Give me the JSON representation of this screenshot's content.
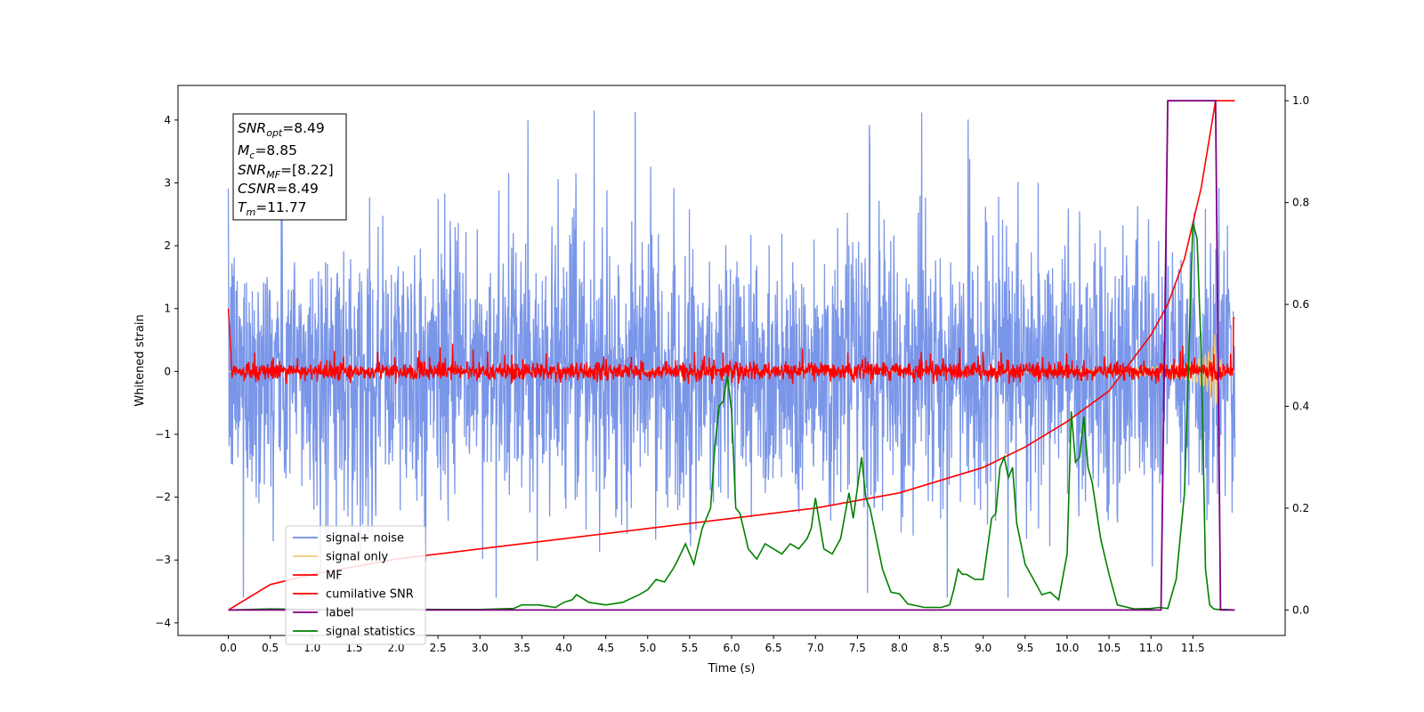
{
  "chart_data": {
    "type": "line",
    "xlabel": "Time (s)",
    "ylabel": "Whitened strain",
    "xlim": [
      -0.6,
      12.6
    ],
    "ylim": [
      -4.2,
      4.55
    ],
    "y2lim": [
      -0.05,
      1.03
    ],
    "x_ticks": [
      "0.0",
      "0.5",
      "1.0",
      "1.5",
      "2.0",
      "2.5",
      "3.0",
      "3.5",
      "4.0",
      "4.5",
      "5.0",
      "5.5",
      "6.0",
      "6.5",
      "7.0",
      "7.5",
      "8.0",
      "8.5",
      "9.0",
      "9.5",
      "10.0",
      "10.5",
      "11.0",
      "11.5"
    ],
    "x_tick_values": [
      0,
      0.5,
      1,
      1.5,
      2,
      2.5,
      3,
      3.5,
      4,
      4.5,
      5,
      5.5,
      6,
      6.5,
      7,
      7.5,
      8,
      8.5,
      9,
      9.5,
      10,
      10.5,
      11,
      11.5
    ],
    "y_ticks": [
      "−4",
      "−3",
      "−2",
      "−1",
      "0",
      "1",
      "2",
      "3",
      "4"
    ],
    "y_tick_values": [
      -4,
      -3,
      -2,
      -1,
      0,
      1,
      2,
      3,
      4
    ],
    "y2_ticks": [
      "0.0",
      "0.2",
      "0.4",
      "0.6",
      "0.8",
      "1.0"
    ],
    "y2_tick_values": [
      0,
      0.2,
      0.4,
      0.6,
      0.8,
      1.0
    ],
    "grid": false,
    "legend_position": "lower-left",
    "series": [
      {
        "name": "signal+ noise",
        "axis": "left",
        "color": "#6b8be6",
        "description": "noise band",
        "x_range": [
          0,
          12.0
        ],
        "envelope": [
          -3.6,
          4.15
        ]
      },
      {
        "name": "signal only",
        "axis": "left",
        "color": "#f5c97a",
        "description": "chirp",
        "x_range": [
          0,
          12.0
        ],
        "amplitude_at_end": 0.8
      },
      {
        "name": "MF",
        "axis": "left",
        "color": "#ff0000",
        "x_range": [
          0,
          12.0
        ],
        "envelope": [
          -0.2,
          0.5
        ]
      },
      {
        "name": "cumilative SNR",
        "axis": "right",
        "color": "#ff0000",
        "x": [
          0,
          0.5,
          1,
          2,
          3,
          4,
          5,
          6,
          7,
          8,
          9,
          9.5,
          10,
          10.5,
          11,
          11.2,
          11.4,
          11.6,
          11.77,
          12.0
        ],
        "values": [
          0,
          0.05,
          0.07,
          0.1,
          0.12,
          0.14,
          0.16,
          0.18,
          0.2,
          0.23,
          0.28,
          0.32,
          0.37,
          0.43,
          0.54,
          0.6,
          0.69,
          0.83,
          1.0,
          1.0
        ]
      },
      {
        "name": "label",
        "axis": "right",
        "color": "#800080",
        "x": [
          0,
          11.12,
          11.2,
          11.77,
          11.83,
          12.0
        ],
        "values": [
          0,
          0,
          1,
          1,
          0,
          0
        ]
      },
      {
        "name": "signal statistics",
        "axis": "right",
        "color": "#008000",
        "x": [
          0,
          0.5,
          1,
          1.5,
          2,
          2.5,
          3,
          3.4,
          3.5,
          3.7,
          3.9,
          4.0,
          4.1,
          4.15,
          4.3,
          4.5,
          4.7,
          4.9,
          5.0,
          5.1,
          5.2,
          5.3,
          5.35,
          5.45,
          5.55,
          5.65,
          5.75,
          5.8,
          5.85,
          5.9,
          5.95,
          6.0,
          6.05,
          6.1,
          6.2,
          6.3,
          6.4,
          6.5,
          6.6,
          6.7,
          6.8,
          6.9,
          6.95,
          7.0,
          7.1,
          7.2,
          7.3,
          7.4,
          7.45,
          7.5,
          7.55,
          7.6,
          7.65,
          7.7,
          7.8,
          7.9,
          8.0,
          8.1,
          8.3,
          8.5,
          8.6,
          8.65,
          8.7,
          8.75,
          8.8,
          8.9,
          9.0,
          9.1,
          9.15,
          9.2,
          9.25,
          9.3,
          9.35,
          9.4,
          9.5,
          9.6,
          9.7,
          9.8,
          9.9,
          10.0,
          10.05,
          10.1,
          10.15,
          10.2,
          10.25,
          10.3,
          10.4,
          10.5,
          10.6,
          10.8,
          11.0,
          11.1,
          11.2,
          11.3,
          11.4,
          11.5,
          11.55,
          11.6,
          11.65,
          11.7,
          11.75,
          11.8,
          11.9,
          12.0
        ],
        "values": [
          0,
          0.002,
          0.001,
          0.002,
          0.002,
          0.001,
          0.001,
          0.003,
          0.01,
          0.01,
          0.005,
          0.015,
          0.02,
          0.03,
          0.015,
          0.01,
          0.015,
          0.03,
          0.04,
          0.06,
          0.055,
          0.08,
          0.095,
          0.13,
          0.09,
          0.16,
          0.2,
          0.32,
          0.4,
          0.41,
          0.46,
          0.39,
          0.2,
          0.19,
          0.12,
          0.1,
          0.13,
          0.12,
          0.11,
          0.13,
          0.12,
          0.14,
          0.16,
          0.22,
          0.12,
          0.11,
          0.14,
          0.23,
          0.18,
          0.24,
          0.3,
          0.22,
          0.2,
          0.16,
          0.08,
          0.035,
          0.032,
          0.012,
          0.005,
          0.005,
          0.01,
          0.04,
          0.08,
          0.07,
          0.07,
          0.06,
          0.06,
          0.18,
          0.19,
          0.28,
          0.3,
          0.26,
          0.28,
          0.17,
          0.09,
          0.06,
          0.03,
          0.035,
          0.02,
          0.11,
          0.39,
          0.29,
          0.3,
          0.38,
          0.28,
          0.25,
          0.14,
          0.07,
          0.01,
          0.002,
          0.003,
          0.005,
          0.003,
          0.06,
          0.23,
          0.76,
          0.73,
          0.5,
          0.08,
          0.01,
          0.002,
          0.001,
          0.001,
          0
        ]
      }
    ]
  },
  "info_box": {
    "lines": [
      {
        "label": "SNR",
        "sub": "opt",
        "value": "=8.49"
      },
      {
        "label": "M",
        "sub": "c",
        "value": "=8.85"
      },
      {
        "label": "SNR",
        "sub": "MF",
        "value": "=[8.22]"
      },
      {
        "label": "CSNR",
        "sub": "",
        "value": "=8.49"
      },
      {
        "label": "T",
        "sub": "m",
        "value": "=11.77"
      }
    ]
  },
  "legend": {
    "items": [
      {
        "label": "signal+ noise",
        "color": "#6b8be6"
      },
      {
        "label": "signal only",
        "color": "#f5c97a"
      },
      {
        "label": "MF",
        "color": "#ff0000"
      },
      {
        "label": "cumilative SNR",
        "color": "#ff0000"
      },
      {
        "label": "label",
        "color": "#800080"
      },
      {
        "label": "signal statistics",
        "color": "#008000"
      }
    ]
  }
}
